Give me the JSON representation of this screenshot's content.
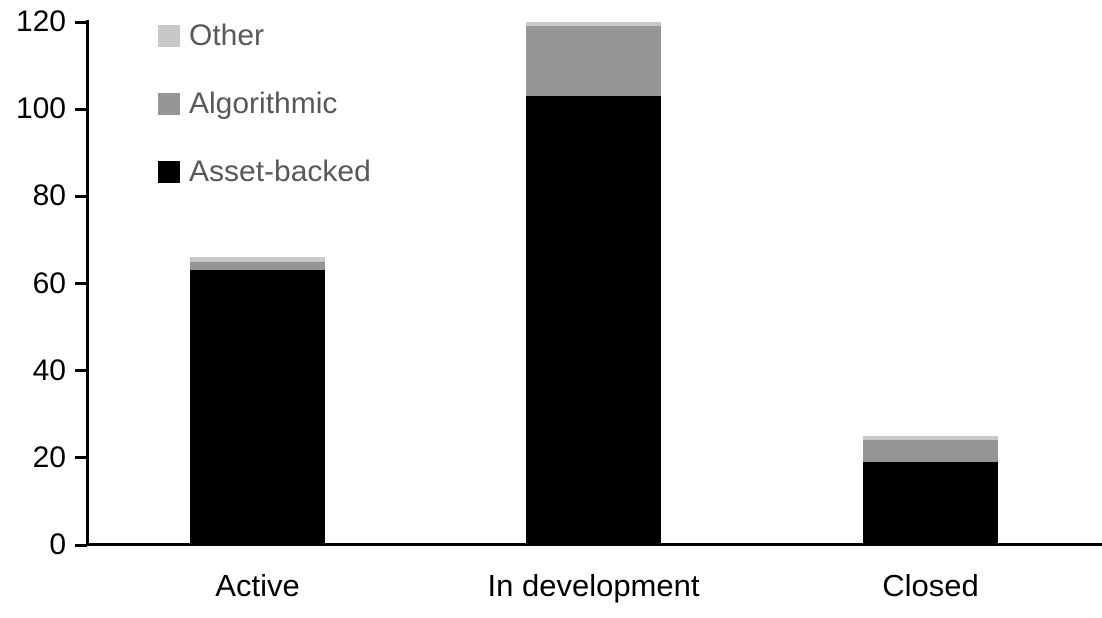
{
  "chart_data": {
    "type": "bar",
    "stacked": true,
    "title": "",
    "xlabel": "",
    "ylabel": "",
    "categories": [
      "Active",
      "In development",
      "Closed"
    ],
    "series": [
      {
        "name": "Asset-backed",
        "color": "#000000",
        "values": [
          63,
          103,
          19
        ]
      },
      {
        "name": "Algorithmic",
        "color": "#969696",
        "values": [
          2,
          16,
          5
        ]
      },
      {
        "name": "Other",
        "color": "#c8c8c8",
        "values": [
          1,
          1,
          1
        ]
      }
    ],
    "totals": [
      66,
      120,
      25
    ],
    "ylim": [
      0,
      120
    ],
    "yticks": [
      0,
      20,
      40,
      60,
      80,
      100,
      120
    ],
    "grid": false,
    "legend": {
      "position": "top-left",
      "order_top_to_bottom": [
        "Other",
        "Algorithmic",
        "Asset-backed"
      ],
      "text_color": "#595959"
    },
    "axis_color": "#000000",
    "background_color": "#ffffff"
  }
}
